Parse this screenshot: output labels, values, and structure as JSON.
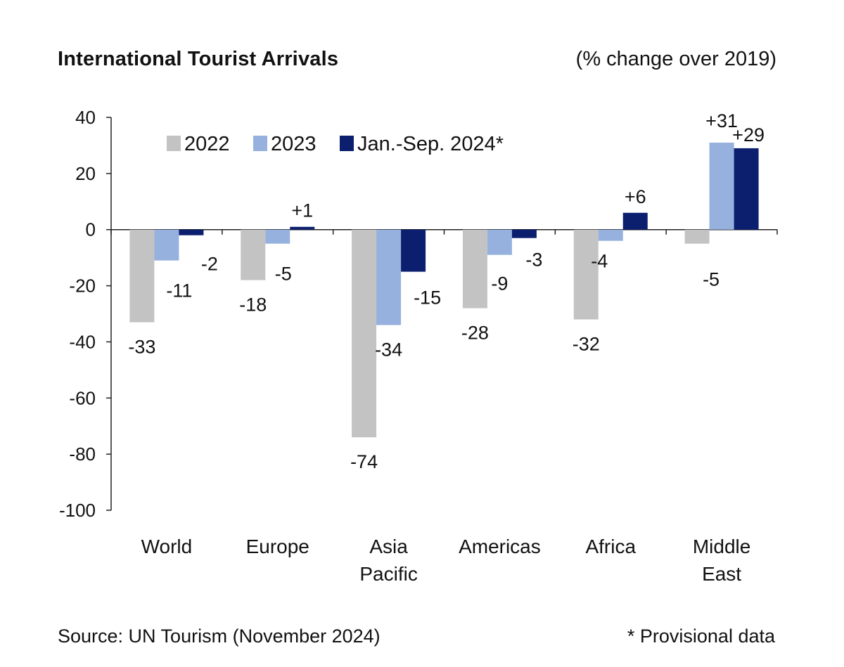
{
  "chart_data": {
    "type": "bar",
    "title": "International Tourist Arrivals",
    "subtitle": "(% change over 2019)",
    "categories": [
      "World",
      "Europe",
      "Asia Pacific",
      "Americas",
      "Africa",
      "Middle East"
    ],
    "series": [
      {
        "name": "2022",
        "color": "#c3c3c3",
        "values": [
          -33,
          -18,
          -74,
          -28,
          -32,
          -5
        ],
        "labels": [
          "-33",
          "-18",
          "-74",
          "-28",
          "-32",
          "-5"
        ]
      },
      {
        "name": "2023",
        "color": "#96b1de",
        "values": [
          -11,
          -5,
          -34,
          -9,
          -4,
          31
        ],
        "labels": [
          "-11",
          "-5",
          "-34",
          "-9",
          "-4",
          "+31"
        ]
      },
      {
        "name": "Jan.-Sep. 2024*",
        "color": "#0b1f6e",
        "values": [
          -2,
          1,
          -15,
          -3,
          6,
          29
        ],
        "labels": [
          "-2",
          "+1",
          "-15",
          "-3",
          "+6",
          "+29"
        ]
      }
    ],
    "y_ticks": [
      40,
      20,
      0,
      -20,
      -40,
      -60,
      -80,
      -100
    ],
    "ylim": [
      -100,
      40
    ],
    "xlabel": "",
    "ylabel": "",
    "grid": false,
    "legend_position": "top-left"
  },
  "footer": {
    "source": "Source: UN Tourism (November 2024)",
    "note": "* Provisional data"
  }
}
